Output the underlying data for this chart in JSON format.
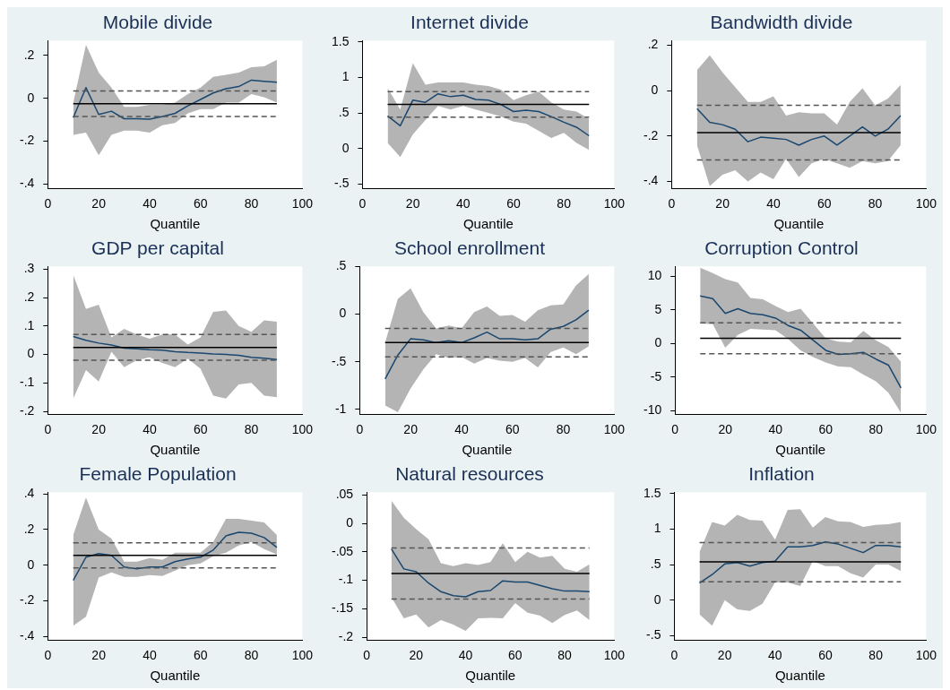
{
  "chart_data": [
    {
      "type": "line",
      "title": "Mobile divide",
      "xlabel": "Quantile",
      "x": [
        10,
        15,
        20,
        25,
        30,
        35,
        40,
        45,
        50,
        55,
        60,
        65,
        70,
        75,
        80,
        85,
        90
      ],
      "xlim": [
        0,
        100
      ],
      "xticks": [
        0,
        20,
        40,
        60,
        80,
        100
      ],
      "ylim": [
        -0.42,
        0.27
      ],
      "yticks": [
        {
          "value": -0.4,
          "label": "-.4"
        },
        {
          "value": -0.2,
          "label": "-.2"
        },
        0,
        {
          "value": 0.2,
          "label": ".2"
        }
      ],
      "series": [
        {
          "color": "#1a476f",
          "values": [
            -0.09,
            0.05,
            -0.075,
            -0.06,
            -0.095,
            -0.095,
            -0.097,
            -0.085,
            -0.07,
            -0.035,
            -0.005,
            0.025,
            0.045,
            0.055,
            0.085,
            0.08,
            0.075
          ],
          "lower": [
            -0.17,
            -0.16,
            -0.265,
            -0.17,
            -0.15,
            -0.15,
            -0.16,
            -0.125,
            -0.115,
            -0.07,
            -0.05,
            -0.05,
            -0.02,
            -0.02,
            0.02,
            0.005,
            -0.02
          ],
          "upper": [
            -0.02,
            0.25,
            0.12,
            0.05,
            -0.04,
            -0.04,
            -0.03,
            -0.03,
            -0.02,
            0.02,
            0.05,
            0.1,
            0.11,
            0.12,
            0.145,
            0.15,
            0.18
          ]
        }
      ],
      "ref_lines": [
        {
          "axis": "y",
          "value": -0.025,
          "color": "#000000",
          "line_style": "solid"
        },
        {
          "axis": "y",
          "value": 0.035,
          "color": "#555555",
          "line_style": "dashed"
        },
        {
          "axis": "y",
          "value": -0.085,
          "color": "#555555",
          "line_style": "dashed"
        }
      ]
    },
    {
      "type": "line",
      "title": "Internet divide",
      "xlabel": "Quantile",
      "x": [
        10,
        15,
        20,
        25,
        30,
        35,
        40,
        45,
        50,
        55,
        60,
        65,
        70,
        75,
        80,
        85,
        90
      ],
      "xlim": [
        0,
        100
      ],
      "xticks": [
        0,
        20,
        40,
        60,
        80,
        100
      ],
      "ylim": [
        -0.56,
        1.52
      ],
      "yticks": [
        {
          "value": -0.5,
          "label": "-.5"
        },
        0,
        {
          "value": 0.5,
          "label": ".5"
        },
        1,
        1.5
      ],
      "series": [
        {
          "color": "#1a476f",
          "values": [
            0.46,
            0.32,
            0.68,
            0.65,
            0.77,
            0.73,
            0.75,
            0.69,
            0.68,
            0.62,
            0.52,
            0.54,
            0.52,
            0.45,
            0.37,
            0.3,
            0.18
          ],
          "lower": [
            0.08,
            -0.12,
            0.2,
            0.4,
            0.6,
            0.55,
            0.6,
            0.55,
            0.5,
            0.45,
            0.38,
            0.35,
            0.25,
            0.15,
            0.22,
            0.08,
            -0.02
          ],
          "upper": [
            0.85,
            0.55,
            1.2,
            0.9,
            0.93,
            0.93,
            0.93,
            0.9,
            0.88,
            0.83,
            0.68,
            0.75,
            0.8,
            0.65,
            0.55,
            0.52,
            0.42
          ]
        }
      ],
      "ref_lines": [
        {
          "axis": "y",
          "value": 0.62,
          "color": "#000000",
          "line_style": "solid"
        },
        {
          "axis": "y",
          "value": 0.8,
          "color": "#555555",
          "line_style": "dashed"
        },
        {
          "axis": "y",
          "value": 0.44,
          "color": "#555555",
          "line_style": "dashed"
        }
      ]
    },
    {
      "type": "line",
      "title": "Bandwidth divide",
      "xlabel": "Quantile",
      "x": [
        10,
        15,
        20,
        25,
        30,
        35,
        40,
        45,
        50,
        55,
        60,
        65,
        70,
        75,
        80,
        85,
        90
      ],
      "xlim": [
        0,
        100
      ],
      "xticks": [
        0,
        20,
        40,
        60,
        80,
        100
      ],
      "ylim": [
        -0.43,
        0.22
      ],
      "yticks": [
        {
          "value": -0.4,
          "label": "-.4"
        },
        {
          "value": -0.2,
          "label": "-.2"
        },
        0,
        {
          "value": 0.2,
          "label": ".2"
        }
      ],
      "series": [
        {
          "color": "#1a476f",
          "values": [
            -0.08,
            -0.14,
            -0.15,
            -0.17,
            -0.225,
            -0.205,
            -0.21,
            -0.215,
            -0.24,
            -0.215,
            -0.2,
            -0.24,
            -0.2,
            -0.16,
            -0.2,
            -0.17,
            -0.11
          ],
          "lower": [
            -0.24,
            -0.42,
            -0.37,
            -0.35,
            -0.4,
            -0.36,
            -0.39,
            -0.3,
            -0.38,
            -0.32,
            -0.3,
            -0.32,
            -0.34,
            -0.31,
            -0.32,
            -0.31,
            -0.24
          ],
          "upper": [
            0.09,
            0.155,
            0.08,
            0.015,
            -0.05,
            -0.05,
            -0.025,
            -0.11,
            -0.095,
            -0.1,
            -0.1,
            -0.15,
            -0.05,
            0.01,
            -0.065,
            -0.035,
            0.025
          ]
        }
      ],
      "ref_lines": [
        {
          "axis": "y",
          "value": -0.185,
          "color": "#000000",
          "line_style": "solid"
        },
        {
          "axis": "y",
          "value": -0.065,
          "color": "#555555",
          "line_style": "dashed"
        },
        {
          "axis": "y",
          "value": -0.305,
          "color": "#555555",
          "line_style": "dashed"
        }
      ]
    },
    {
      "type": "line",
      "title": "GDP per capital",
      "xlabel": "Quantile",
      "x": [
        10,
        15,
        20,
        25,
        30,
        35,
        40,
        45,
        50,
        55,
        60,
        65,
        70,
        75,
        80,
        85,
        90
      ],
      "xlim": [
        0,
        100
      ],
      "xticks": [
        0,
        20,
        40,
        60,
        80,
        100
      ],
      "ylim": [
        -0.21,
        0.31
      ],
      "yticks": [
        {
          "value": -0.2,
          "label": "-.2"
        },
        {
          "value": -0.1,
          "label": "-.1"
        },
        0,
        {
          "value": 0.1,
          "label": ".1"
        },
        {
          "value": 0.2,
          "label": ".2"
        },
        {
          "value": 0.3,
          "label": ".3"
        }
      ],
      "series": [
        {
          "color": "#1a476f",
          "values": [
            0.063,
            0.05,
            0.04,
            0.033,
            0.022,
            0.02,
            0.017,
            0.015,
            0.01,
            0.007,
            0.005,
            0.002,
            0,
            -0.003,
            -0.01,
            -0.013,
            -0.018
          ],
          "lower": [
            -0.155,
            -0.055,
            -0.095,
            0.01,
            -0.045,
            -0.02,
            -0.01,
            -0.03,
            -0.045,
            -0.015,
            -0.05,
            -0.145,
            -0.155,
            -0.105,
            -0.1,
            -0.145,
            -0.15
          ],
          "upper": [
            0.28,
            0.16,
            0.175,
            0.06,
            0.09,
            0.07,
            0.055,
            0.07,
            0.07,
            0.035,
            0.06,
            0.15,
            0.155,
            0.1,
            0.08,
            0.12,
            0.115
          ]
        }
      ],
      "ref_lines": [
        {
          "axis": "y",
          "value": 0.025,
          "color": "#000000",
          "line_style": "solid"
        },
        {
          "axis": "y",
          "value": 0.07,
          "color": "#555555",
          "line_style": "dashed"
        },
        {
          "axis": "y",
          "value": -0.02,
          "color": "#555555",
          "line_style": "dashed"
        }
      ]
    },
    {
      "type": "line",
      "title": "School enrollment",
      "xlabel": "Quantile",
      "x": [
        10,
        15,
        20,
        25,
        30,
        35,
        40,
        45,
        50,
        55,
        60,
        65,
        70,
        75,
        80,
        85,
        90
      ],
      "xlim": [
        0,
        100
      ],
      "xticks": [
        0,
        20,
        40,
        60,
        80,
        100
      ],
      "ylim": [
        -1.05,
        0.5
      ],
      "yticks": [
        -1,
        {
          "value": -0.5,
          "label": "-.5"
        },
        0,
        {
          "value": 0.5,
          "label": ".5"
        }
      ],
      "series": [
        {
          "color": "#1a476f",
          "values": [
            -0.68,
            -0.43,
            -0.26,
            -0.27,
            -0.3,
            -0.28,
            -0.3,
            -0.25,
            -0.19,
            -0.26,
            -0.26,
            -0.27,
            -0.26,
            -0.16,
            -0.13,
            -0.06,
            0.04
          ],
          "lower": [
            -0.96,
            -1.03,
            -0.78,
            -0.58,
            -0.42,
            -0.46,
            -0.45,
            -0.52,
            -0.46,
            -0.49,
            -0.5,
            -0.46,
            -0.56,
            -0.4,
            -0.35,
            -0.42,
            -0.34
          ],
          "upper": [
            -0.3,
            0.16,
            0.27,
            0.02,
            -0.15,
            -0.12,
            -0.15,
            0.02,
            0.08,
            -0.02,
            -0.01,
            -0.08,
            0.04,
            0.09,
            0.1,
            0.3,
            0.42
          ]
        }
      ],
      "ref_lines": [
        {
          "axis": "y",
          "value": -0.3,
          "color": "#000000",
          "line_style": "solid"
        },
        {
          "axis": "y",
          "value": -0.15,
          "color": "#555555",
          "line_style": "dashed"
        },
        {
          "axis": "y",
          "value": -0.45,
          "color": "#555555",
          "line_style": "dashed"
        }
      ]
    },
    {
      "type": "line",
      "title": "Corruption Control",
      "xlabel": "Quantile",
      "x": [
        10,
        15,
        20,
        25,
        30,
        35,
        40,
        45,
        50,
        55,
        60,
        65,
        70,
        75,
        80,
        85,
        90
      ],
      "xlim": [
        0,
        100
      ],
      "xticks": [
        0,
        20,
        40,
        60,
        80,
        100
      ],
      "ylim": [
        -10.5,
        11.5
      ],
      "yticks": [
        -10,
        -5,
        0,
        5,
        10
      ],
      "series": [
        {
          "color": "#1a476f",
          "values": [
            7.1,
            6.7,
            4.5,
            5.2,
            4.5,
            4.3,
            3.8,
            2.7,
            2,
            0.5,
            -1,
            -1.6,
            -1.5,
            -1.3,
            -2.3,
            -3.2,
            -6.6
          ],
          "lower": [
            3,
            2.9,
            -0.6,
            1.3,
            2.2,
            2.1,
            2,
            0.7,
            -1,
            -2,
            -2.8,
            -3.4,
            -3.5,
            -4.6,
            -5.6,
            -7.3,
            -10.3
          ],
          "upper": [
            11.3,
            10.5,
            9.6,
            9.1,
            6.8,
            6.6,
            5.6,
            4.7,
            5.2,
            3,
            0.8,
            0.3,
            0.2,
            1.9,
            0.5,
            -0.5,
            -2.7
          ]
        }
      ],
      "ref_lines": [
        {
          "axis": "y",
          "value": 0.8,
          "color": "#000000",
          "line_style": "solid"
        },
        {
          "axis": "y",
          "value": 3.1,
          "color": "#555555",
          "line_style": "dashed"
        },
        {
          "axis": "y",
          "value": -1.5,
          "color": "#555555",
          "line_style": "dashed"
        }
      ]
    },
    {
      "type": "line",
      "title": "Female Population",
      "xlabel": "Quantile",
      "x": [
        10,
        15,
        20,
        25,
        30,
        35,
        40,
        45,
        50,
        55,
        60,
        65,
        70,
        75,
        80,
        85,
        90
      ],
      "xlim": [
        0,
        100
      ],
      "xticks": [
        0,
        20,
        40,
        60,
        80,
        100
      ],
      "ylim": [
        -0.42,
        0.41
      ],
      "yticks": [
        {
          "value": -0.4,
          "label": "-.4"
        },
        {
          "value": -0.2,
          "label": "-.2"
        },
        0,
        {
          "value": 0.2,
          "label": ".2"
        },
        {
          "value": 0.4,
          "label": ".4"
        }
      ],
      "series": [
        {
          "color": "#1a476f",
          "values": [
            -0.085,
            0.045,
            0.065,
            0.055,
            -0.01,
            -0.02,
            -0.01,
            -0.01,
            0.02,
            0.035,
            0.045,
            0.085,
            0.165,
            0.185,
            0.18,
            0.155,
            0.1
          ],
          "lower": [
            -0.34,
            -0.29,
            -0.07,
            -0.04,
            -0.065,
            -0.065,
            -0.055,
            -0.06,
            -0.03,
            0,
            0.01,
            0.05,
            0.07,
            0.11,
            0.13,
            0.09,
            0.06
          ],
          "upper": [
            0.17,
            0.38,
            0.2,
            0.15,
            0.02,
            0.02,
            0.04,
            0.03,
            0.07,
            0.07,
            0.07,
            0.13,
            0.26,
            0.26,
            0.25,
            0.24,
            0.17
          ]
        }
      ],
      "ref_lines": [
        {
          "axis": "y",
          "value": 0.055,
          "color": "#000000",
          "line_style": "solid"
        },
        {
          "axis": "y",
          "value": 0.125,
          "color": "#555555",
          "line_style": "dashed"
        },
        {
          "axis": "y",
          "value": -0.015,
          "color": "#555555",
          "line_style": "dashed"
        }
      ]
    },
    {
      "type": "line",
      "title": "Natural resources",
      "xlabel": "Quantile",
      "x": [
        10,
        15,
        20,
        25,
        30,
        35,
        40,
        45,
        50,
        55,
        60,
        65,
        70,
        75,
        80,
        85,
        90
      ],
      "xlim": [
        0,
        100
      ],
      "xticks": [
        0,
        20,
        40,
        60,
        80,
        100
      ],
      "ylim": [
        -0.205,
        0.055
      ],
      "yticks": [
        {
          "value": -0.2,
          "label": "-.2"
        },
        {
          "value": -0.15,
          "label": "-.15"
        },
        {
          "value": -0.1,
          "label": "-.1"
        },
        {
          "value": -0.05,
          "label": "-.05"
        },
        0,
        {
          "value": 0.05,
          "label": ".05"
        }
      ],
      "series": [
        {
          "color": "#1a476f",
          "values": [
            -0.045,
            -0.08,
            -0.085,
            -0.105,
            -0.12,
            -0.127,
            -0.129,
            -0.12,
            -0.118,
            -0.101,
            -0.103,
            -0.103,
            -0.109,
            -0.115,
            -0.119,
            -0.119,
            -0.12
          ],
          "lower": [
            -0.13,
            -0.167,
            -0.16,
            -0.183,
            -0.17,
            -0.178,
            -0.189,
            -0.167,
            -0.166,
            -0.167,
            -0.14,
            -0.157,
            -0.162,
            -0.175,
            -0.161,
            -0.153,
            -0.17
          ],
          "upper": [
            0.04,
            0.01,
            -0.01,
            -0.028,
            -0.07,
            -0.075,
            -0.07,
            -0.073,
            -0.068,
            -0.035,
            -0.068,
            -0.05,
            -0.06,
            -0.057,
            -0.08,
            -0.085,
            -0.072
          ]
        }
      ],
      "ref_lines": [
        {
          "axis": "y",
          "value": -0.088,
          "color": "#000000",
          "line_style": "solid"
        },
        {
          "axis": "y",
          "value": -0.043,
          "color": "#555555",
          "line_style": "dashed"
        },
        {
          "axis": "y",
          "value": -0.133,
          "color": "#555555",
          "line_style": "dashed"
        }
      ]
    },
    {
      "type": "line",
      "title": "Inflation",
      "xlabel": "Quantile",
      "x": [
        10,
        15,
        20,
        25,
        30,
        35,
        40,
        45,
        50,
        55,
        60,
        65,
        70,
        75,
        80,
        85,
        90
      ],
      "xlim": [
        0,
        100
      ],
      "xticks": [
        0,
        20,
        40,
        60,
        80,
        100
      ],
      "ylim": [
        -0.56,
        1.52
      ],
      "yticks": [
        {
          "value": -0.5,
          "label": "-.5"
        },
        0,
        {
          "value": 0.5,
          "label": ".5"
        },
        1,
        1.5
      ],
      "series": [
        {
          "color": "#1a476f",
          "values": [
            0.24,
            0.36,
            0.51,
            0.53,
            0.48,
            0.53,
            0.55,
            0.75,
            0.75,
            0.77,
            0.82,
            0.79,
            0.73,
            0.67,
            0.77,
            0.77,
            0.75
          ],
          "lower": [
            -0.2,
            -0.36,
            0,
            -0.13,
            -0.15,
            -0.05,
            0.25,
            0.25,
            0.2,
            0.55,
            0.48,
            0.48,
            0.38,
            0.32,
            0.5,
            0.5,
            0.41
          ],
          "upper": [
            0.68,
            1.1,
            1.05,
            1.2,
            1.13,
            1.12,
            0.85,
            1.27,
            1.28,
            1.02,
            1.17,
            1.11,
            1.1,
            1.03,
            1.06,
            1.07,
            1.1
          ]
        }
      ],
      "ref_lines": [
        {
          "axis": "y",
          "value": 0.54,
          "color": "#000000",
          "line_style": "solid"
        },
        {
          "axis": "y",
          "value": 0.81,
          "color": "#555555",
          "line_style": "dashed"
        },
        {
          "axis": "y",
          "value": 0.26,
          "color": "#555555",
          "line_style": "dashed"
        }
      ]
    }
  ]
}
